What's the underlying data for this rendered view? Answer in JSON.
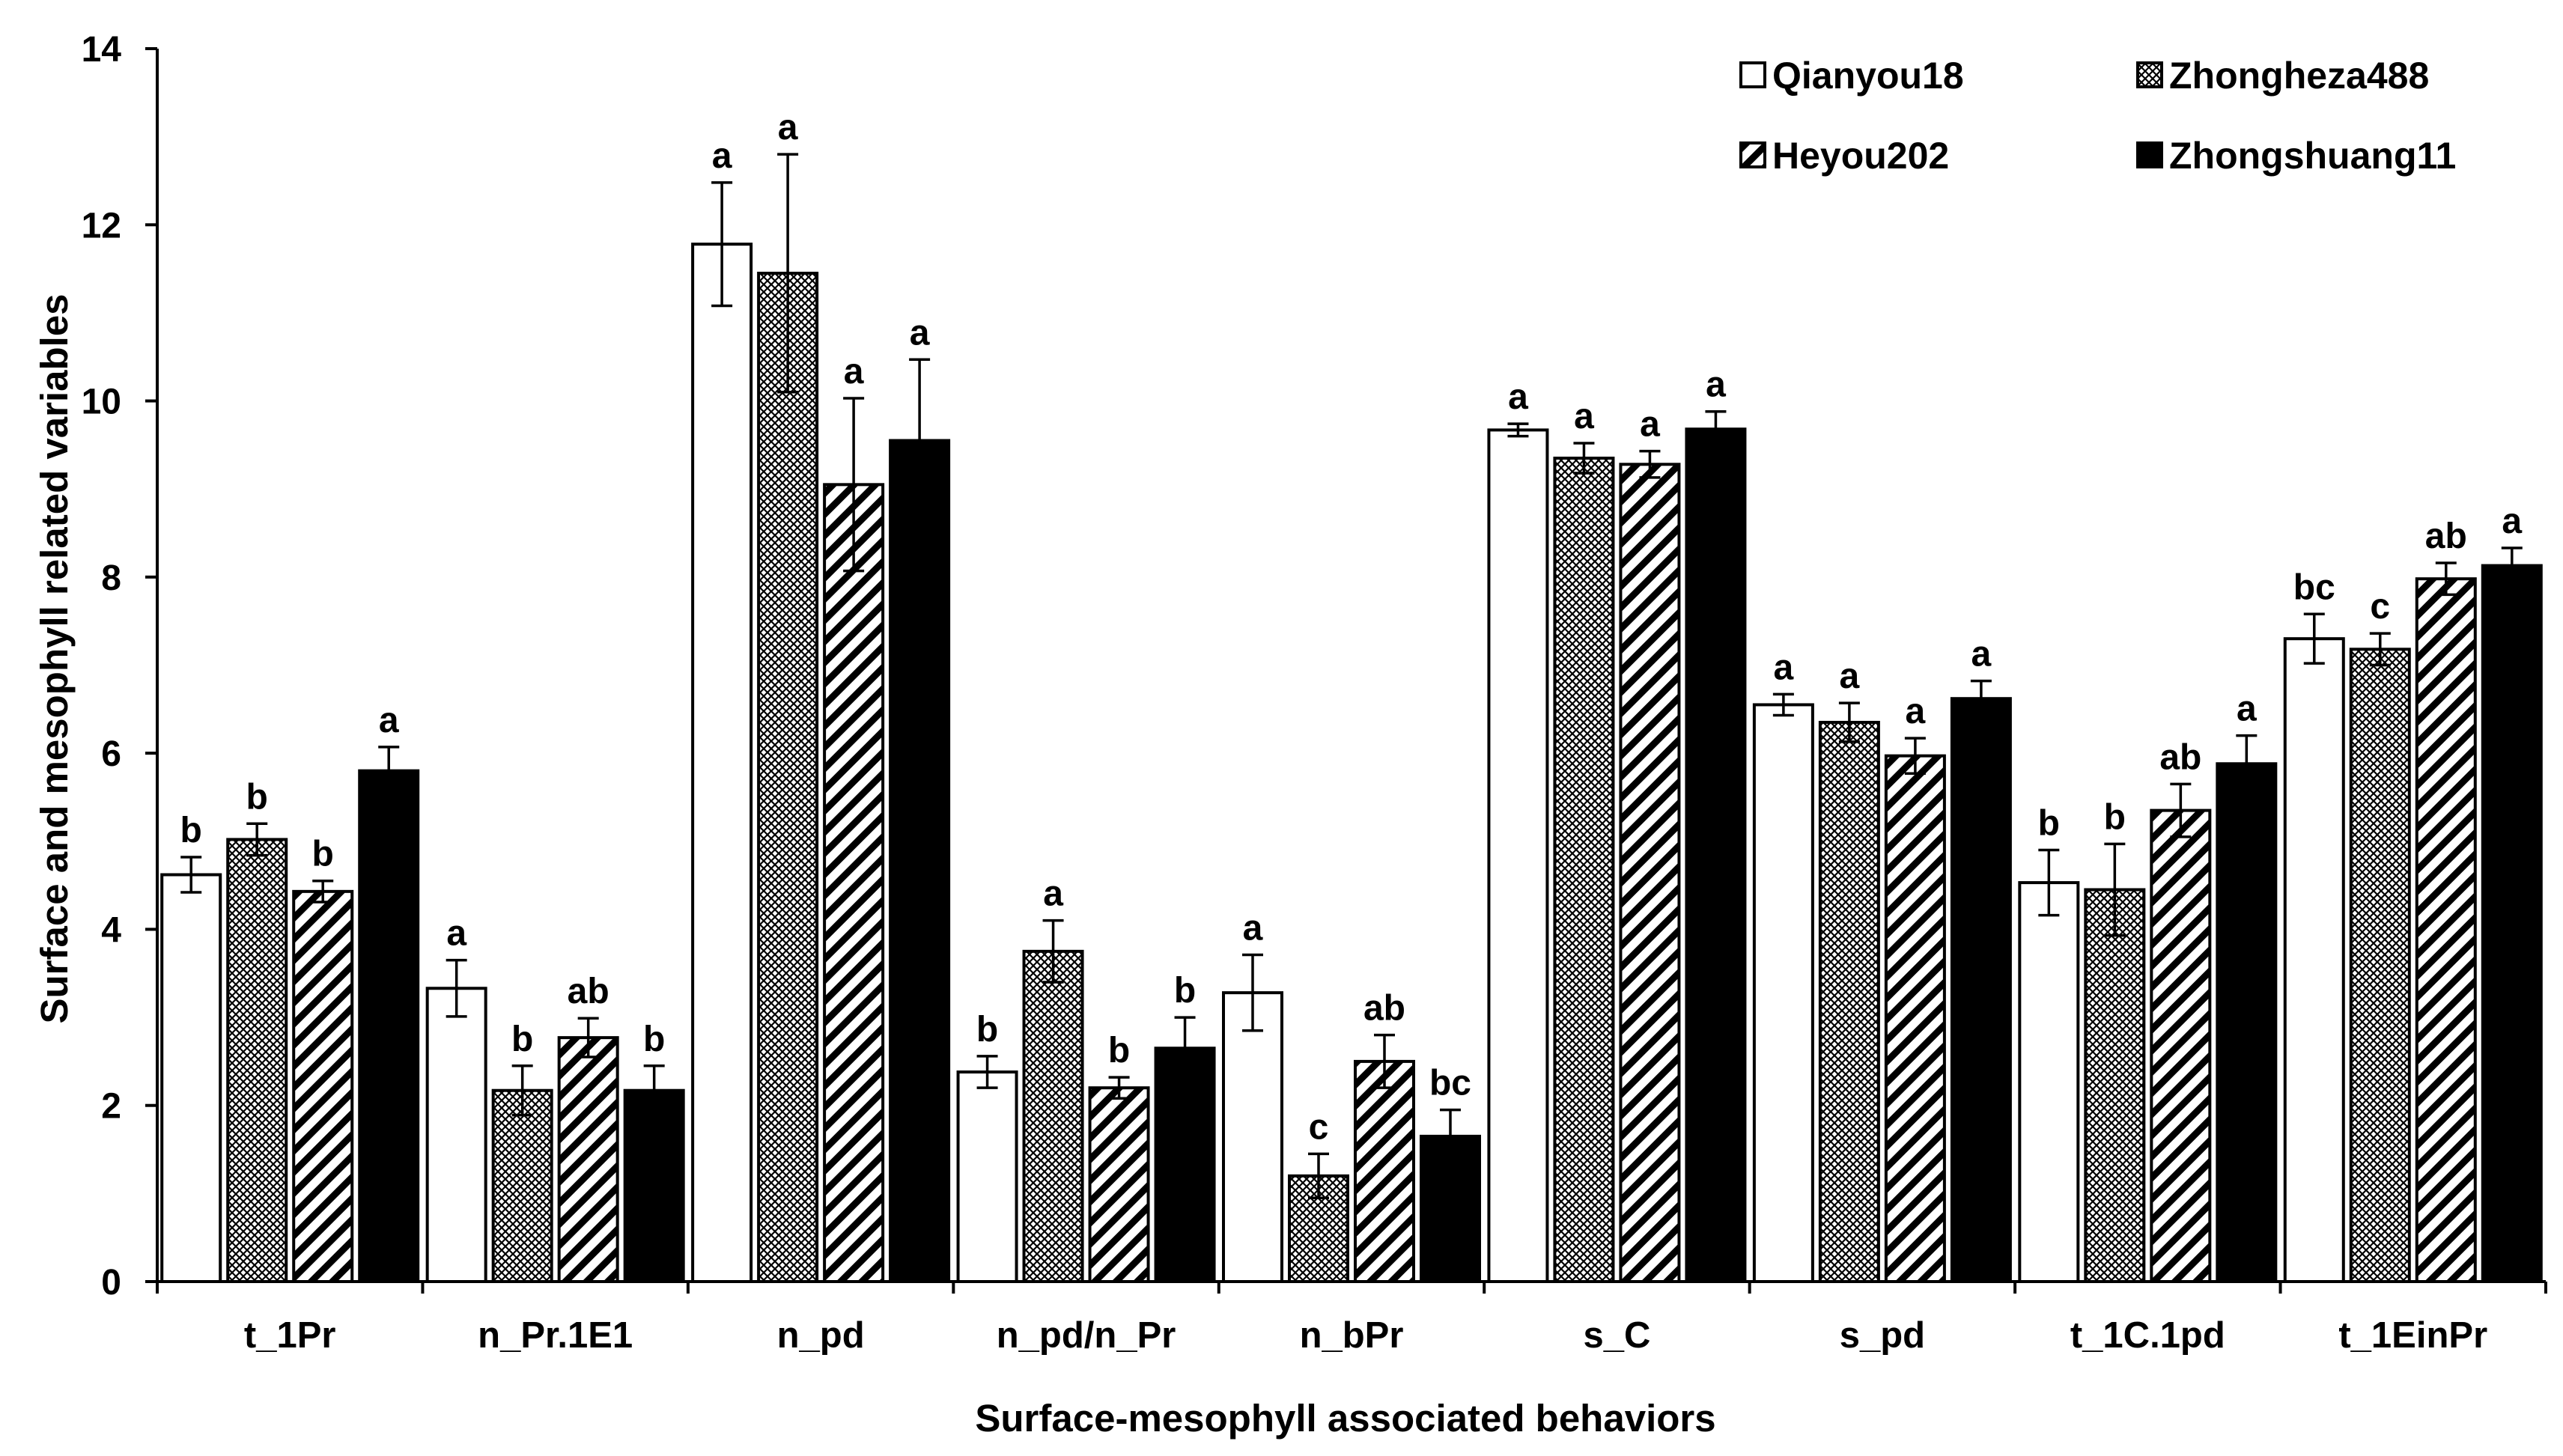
{
  "chart_data": {
    "type": "bar",
    "title": "",
    "xlabel": "Surface-mesophyll associated behaviors",
    "ylabel": "Surface and mesophyll related  variables",
    "ylim": [
      0,
      14
    ],
    "yticks": [
      "0",
      "2",
      "4",
      "6",
      "8",
      "10",
      "12",
      "14"
    ],
    "categories": [
      "t_1Pr",
      "n_Pr.1E1",
      "n_pd",
      "n_pd/n_Pr",
      "n_bPr",
      "s_C",
      "s_pd",
      "t_1C.1pd",
      "t_1EinPr"
    ],
    "legend_position": "top-right",
    "series": [
      {
        "name": "Qianyou18",
        "pattern": "white",
        "values": [
          4.62,
          3.33,
          11.78,
          2.38,
          3.28,
          9.67,
          6.55,
          4.53,
          7.3
        ],
        "errors": [
          0.2,
          0.32,
          0.7,
          0.18,
          0.43,
          0.07,
          0.12,
          0.37,
          0.28
        ],
        "letters": [
          "b",
          "a",
          "a",
          "b",
          "a",
          "a",
          "a",
          "b",
          "bc"
        ]
      },
      {
        "name": "Zhongheza488",
        "pattern": "crosshatch",
        "values": [
          5.02,
          2.17,
          11.45,
          3.75,
          1.2,
          9.35,
          6.35,
          4.45,
          7.18
        ],
        "errors": [
          0.18,
          0.28,
          1.35,
          0.35,
          0.25,
          0.17,
          0.22,
          0.52,
          0.18
        ],
        "letters": [
          "b",
          "b",
          "a",
          "a",
          "c",
          "a",
          "a",
          "b",
          "c"
        ]
      },
      {
        "name": "Heyou202",
        "pattern": "diagonal",
        "values": [
          4.43,
          2.77,
          9.05,
          2.2,
          2.5,
          9.28,
          5.97,
          5.35,
          7.98
        ],
        "errors": [
          0.12,
          0.22,
          0.98,
          0.12,
          0.3,
          0.15,
          0.2,
          0.3,
          0.18
        ],
        "letters": [
          "b",
          "ab",
          "a",
          "b",
          "ab",
          "a",
          "a",
          "ab",
          "ab"
        ]
      },
      {
        "name": "Zhongshuang11",
        "pattern": "black",
        "values": [
          5.8,
          2.17,
          9.55,
          2.65,
          1.65,
          9.68,
          6.62,
          5.88,
          8.13
        ],
        "errors": [
          0.27,
          0.28,
          0.92,
          0.35,
          0.3,
          0.2,
          0.2,
          0.32,
          0.2
        ],
        "letters": [
          "a",
          "b",
          "a",
          "b",
          "bc",
          "a",
          "a",
          "a",
          "a"
        ]
      }
    ]
  }
}
